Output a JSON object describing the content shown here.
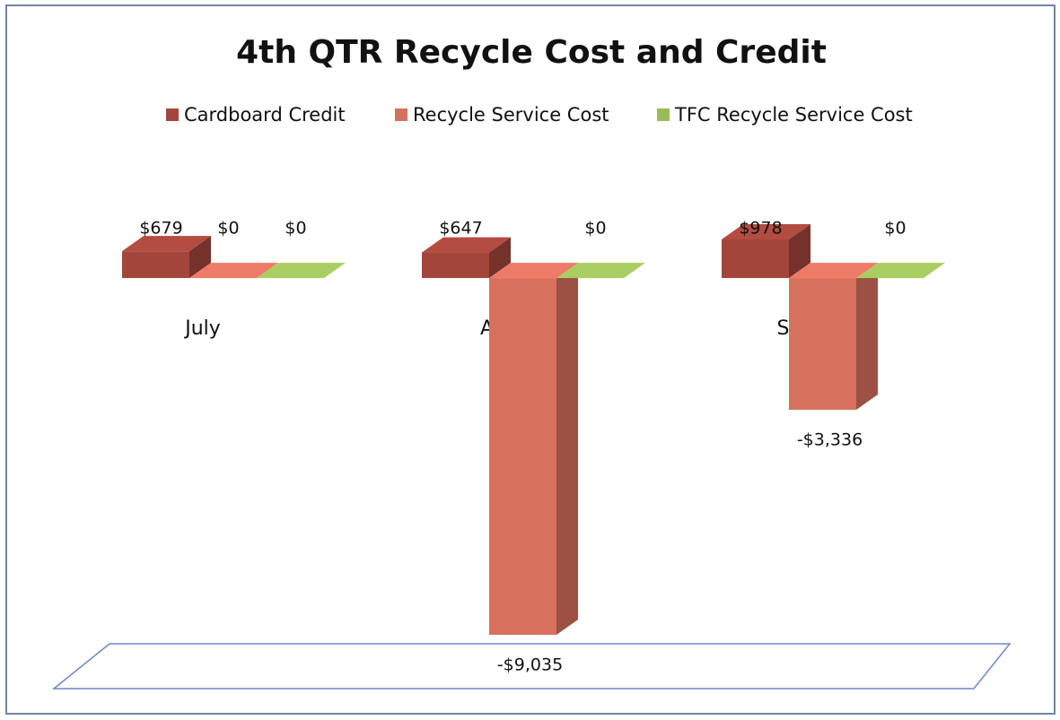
{
  "chart_data": {
    "type": "bar3d",
    "title": "4th QTR Recycle Cost and Credit",
    "categories": [
      "July",
      "Aug.",
      "Sept."
    ],
    "series": [
      {
        "name": "Cardboard Credit",
        "color": "#a3453b",
        "values": [
          679,
          647,
          978
        ],
        "value_labels": [
          "$679",
          "$647",
          "$978"
        ]
      },
      {
        "name": "Recycle Service Cost",
        "color": "#d8705e",
        "values": [
          0,
          -9035,
          -3336
        ],
        "value_labels": [
          "$0",
          "-$9,035",
          "-$3,336"
        ]
      },
      {
        "name": "TFC Recycle Service Cost",
        "color": "#9bbb59",
        "values": [
          0,
          0,
          0
        ],
        "value_labels": [
          "$0",
          "$0",
          "$0"
        ]
      }
    ],
    "legend": "top"
  }
}
